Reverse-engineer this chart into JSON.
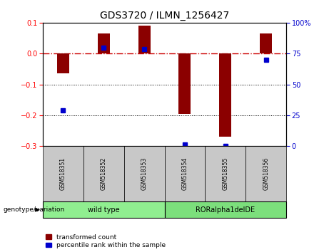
{
  "title": "GDS3720 / ILMN_1256427",
  "samples": [
    "GSM518351",
    "GSM518352",
    "GSM518353",
    "GSM518354",
    "GSM518355",
    "GSM518356"
  ],
  "red_bars": [
    -0.065,
    0.065,
    0.09,
    -0.195,
    -0.27,
    0.065
  ],
  "blue_dots": [
    -0.185,
    0.02,
    0.015,
    -0.295,
    -0.3,
    -0.02
  ],
  "ylim_left": [
    -0.3,
    0.1
  ],
  "ylim_right": [
    0,
    100
  ],
  "yticks_left": [
    -0.3,
    -0.2,
    -0.1,
    0.0,
    0.1
  ],
  "yticks_right": [
    0,
    25,
    50,
    75,
    100
  ],
  "group_row_color": "#c8c8c8",
  "bar_color": "#8b0000",
  "dot_color": "#0000cd",
  "hline_color": "#cc0000",
  "grid_color": "black",
  "wild_type_color": "#90ee90",
  "mutant_color": "#7cdf7c",
  "legend_items": [
    "transformed count",
    "percentile rank within the sample"
  ],
  "genotype_label": "genotype/variation",
  "right_axis_color": "#0000cc",
  "title_fontsize": 10,
  "tick_fontsize": 7,
  "label_fontsize": 7
}
